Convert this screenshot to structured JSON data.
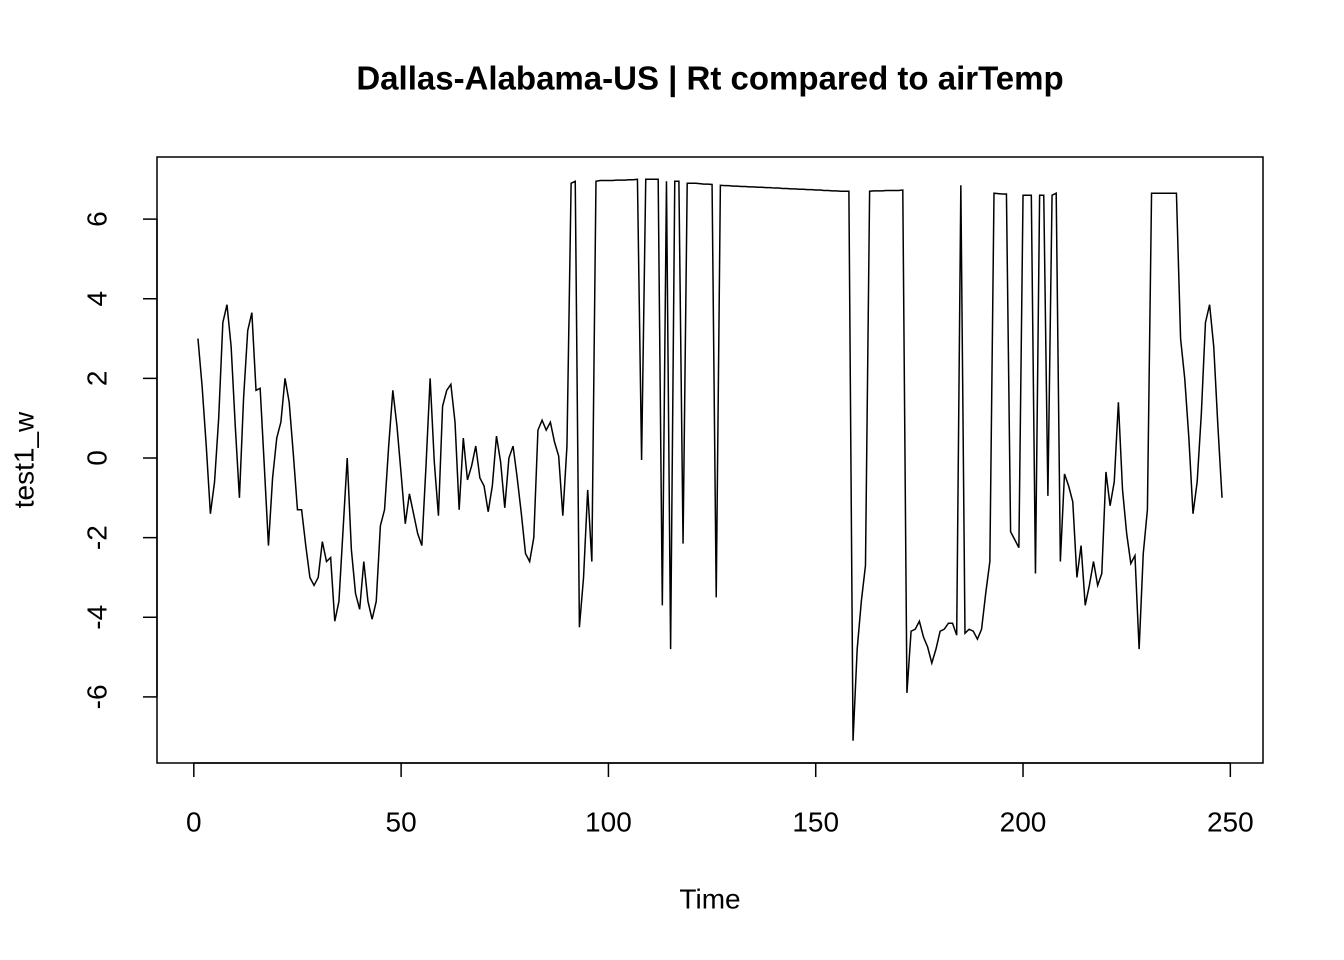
{
  "chart_data": {
    "type": "line",
    "title": "Dallas-Alabama-US | Rt compared to airTemp",
    "x_label": "Time",
    "y_label": "test1_w",
    "x": [
      1,
      2,
      3,
      4,
      5,
      6,
      7,
      8,
      9,
      10,
      11,
      12,
      13,
      14,
      15,
      16,
      17,
      18,
      19,
      20,
      21,
      22,
      23,
      24,
      25,
      26,
      27,
      28,
      29,
      30,
      31,
      32,
      33,
      34,
      35,
      36,
      37,
      38,
      39,
      40,
      41,
      42,
      43,
      44,
      45,
      46,
      47,
      48,
      49,
      50,
      51,
      52,
      53,
      54,
      55,
      56,
      57,
      58,
      59,
      60,
      61,
      62,
      63,
      64,
      65,
      66,
      67,
      68,
      69,
      70,
      71,
      72,
      73,
      74,
      75,
      76,
      77,
      78,
      79,
      80,
      81,
      82,
      83,
      84,
      85,
      86,
      87,
      88,
      89,
      90,
      91,
      92,
      93,
      94,
      95,
      96,
      97,
      98,
      99,
      100,
      101,
      102,
      103,
      104,
      105,
      106,
      107,
      108,
      109,
      110,
      111,
      112,
      113,
      114,
      115,
      116,
      117,
      118,
      119,
      120,
      121,
      122,
      123,
      124,
      125,
      126,
      127,
      128,
      129,
      130,
      131,
      132,
      133,
      134,
      135,
      136,
      137,
      138,
      139,
      140,
      141,
      142,
      143,
      144,
      145,
      146,
      147,
      148,
      149,
      150,
      151,
      152,
      153,
      154,
      155,
      156,
      157,
      158,
      159,
      160,
      161,
      162,
      163,
      164,
      165,
      166,
      167,
      168,
      169,
      170,
      171,
      172,
      173,
      174,
      175,
      176,
      177,
      178,
      179,
      180,
      181,
      182,
      183,
      184,
      185,
      186,
      187,
      188,
      189,
      190,
      191,
      192,
      193,
      194,
      195,
      196,
      197,
      198,
      199,
      200,
      201,
      202,
      203,
      204,
      205,
      206,
      207,
      208,
      209,
      210,
      211,
      212,
      213,
      214,
      215,
      216,
      217,
      218,
      219,
      220,
      221,
      222,
      223,
      224,
      225,
      226,
      227,
      228,
      229,
      230,
      231,
      232,
      233,
      234,
      235,
      236,
      237,
      238,
      239,
      240,
      241,
      242,
      243,
      244,
      245,
      246,
      247,
      248
    ],
    "series": [
      {
        "name": "test1_w",
        "color": "#000000",
        "values": [
          3.0,
          1.8,
          0.3,
          -1.4,
          -0.6,
          1.0,
          3.4,
          3.85,
          2.8,
          0.8,
          -1.0,
          1.5,
          3.2,
          3.65,
          1.7,
          1.75,
          -0.2,
          -2.2,
          -0.5,
          0.5,
          0.9,
          2.0,
          1.4,
          0.1,
          -1.3,
          -1.3,
          -2.2,
          -3.0,
          -3.2,
          -3.0,
          -2.1,
          -2.6,
          -2.5,
          -4.1,
          -3.6,
          -1.8,
          0.0,
          -2.3,
          -3.4,
          -3.8,
          -2.6,
          -3.6,
          -4.05,
          -3.6,
          -1.7,
          -1.3,
          0.3,
          1.7,
          0.8,
          -0.4,
          -1.65,
          -0.9,
          -1.4,
          -1.9,
          -2.2,
          -0.2,
          2.0,
          -0.1,
          -1.45,
          1.3,
          1.7,
          1.85,
          0.9,
          -1.3,
          0.5,
          -0.55,
          -0.2,
          0.3,
          -0.5,
          -0.7,
          -1.35,
          -0.7,
          0.55,
          -0.1,
          -1.25,
          0.0,
          0.3,
          -0.5,
          -1.4,
          -2.4,
          -2.6,
          -2.0,
          0.7,
          0.95,
          0.7,
          0.9,
          0.4,
          0.05,
          -1.45,
          0.3,
          6.9,
          6.95,
          -4.25,
          -3.0,
          -0.8,
          -2.6,
          6.95,
          6.97,
          6.97,
          6.97,
          6.97,
          6.98,
          6.98,
          6.98,
          6.99,
          6.99,
          7.0,
          -0.05,
          7.0,
          7.0,
          7.0,
          7.0,
          -3.7,
          6.95,
          -4.8,
          6.95,
          6.95,
          -2.15,
          6.9,
          6.9,
          6.9,
          6.89,
          6.88,
          6.88,
          6.87,
          -3.5,
          6.85,
          6.84,
          6.84,
          6.83,
          6.83,
          6.82,
          6.82,
          6.81,
          6.81,
          6.8,
          6.8,
          6.79,
          6.79,
          6.78,
          6.78,
          6.77,
          6.77,
          6.76,
          6.76,
          6.75,
          6.75,
          6.74,
          6.74,
          6.73,
          6.73,
          6.72,
          6.72,
          6.71,
          6.71,
          6.7,
          6.7,
          6.7,
          -7.1,
          -4.8,
          -3.6,
          -2.7,
          6.7,
          6.71,
          6.71,
          6.71,
          6.72,
          6.72,
          6.72,
          6.72,
          6.73,
          -5.9,
          -4.35,
          -4.3,
          -4.1,
          -4.5,
          -4.75,
          -5.15,
          -4.8,
          -4.35,
          -4.3,
          -4.15,
          -4.15,
          -4.45,
          6.85,
          -4.4,
          -4.3,
          -4.35,
          -4.55,
          -4.3,
          -3.4,
          -2.6,
          6.65,
          6.64,
          6.63,
          6.63,
          -1.85,
          -2.05,
          -2.25,
          6.6,
          6.6,
          6.6,
          -2.9,
          6.6,
          6.6,
          -0.95,
          6.6,
          6.65,
          -2.6,
          -0.4,
          -0.7,
          -1.1,
          -3.0,
          -2.2,
          -3.7,
          -3.2,
          -2.6,
          -3.2,
          -2.9,
          -0.35,
          -1.2,
          -0.6,
          1.4,
          -0.8,
          -1.9,
          -2.65,
          -2.45,
          -4.8,
          -2.4,
          -1.3,
          6.65,
          6.65,
          6.65,
          6.65,
          6.65,
          6.65,
          6.65,
          3.0,
          2.0,
          0.5,
          -1.4,
          -0.6,
          1.1,
          3.4,
          3.85,
          2.8,
          0.8,
          -1.0
        ]
      }
    ],
    "xlim": [
      -8.88,
      257.88
    ],
    "ylim": [
      -7.66,
      7.56
    ],
    "xticks": [
      0,
      50,
      100,
      150,
      200,
      250
    ],
    "yticks": [
      -6,
      -4,
      -2,
      0,
      2,
      4,
      6
    ]
  }
}
